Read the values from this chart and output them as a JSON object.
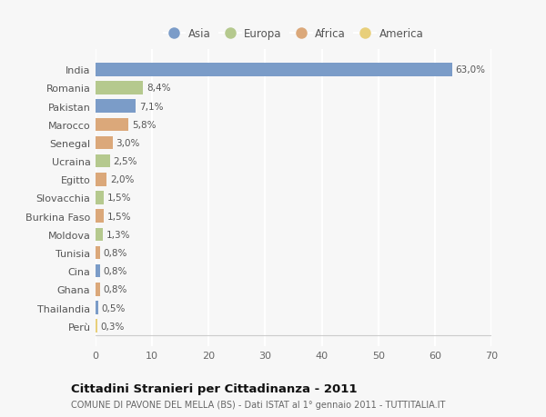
{
  "countries": [
    "India",
    "Romania",
    "Pakistan",
    "Marocco",
    "Senegal",
    "Ucraina",
    "Egitto",
    "Slovacchia",
    "Burkina Faso",
    "Moldova",
    "Tunisia",
    "Cina",
    "Ghana",
    "Thailandia",
    "Perù"
  ],
  "values": [
    63.0,
    8.4,
    7.1,
    5.8,
    3.0,
    2.5,
    2.0,
    1.5,
    1.5,
    1.3,
    0.8,
    0.8,
    0.8,
    0.5,
    0.3
  ],
  "labels": [
    "63,0%",
    "8,4%",
    "7,1%",
    "5,8%",
    "3,0%",
    "2,5%",
    "2,0%",
    "1,5%",
    "1,5%",
    "1,3%",
    "0,8%",
    "0,8%",
    "0,8%",
    "0,5%",
    "0,3%"
  ],
  "continents": [
    "Asia",
    "Europa",
    "Asia",
    "Africa",
    "Africa",
    "Europa",
    "Africa",
    "Europa",
    "Africa",
    "Europa",
    "Africa",
    "Asia",
    "Africa",
    "Asia",
    "America"
  ],
  "continent_colors": {
    "Asia": "#7b9cc8",
    "Europa": "#b5c98e",
    "Africa": "#dba87a",
    "America": "#e8cf7a"
  },
  "legend_order": [
    "Asia",
    "Europa",
    "Africa",
    "America"
  ],
  "title": "Cittadini Stranieri per Cittadinanza - 2011",
  "subtitle": "COMUNE DI PAVONE DEL MELLA (BS) - Dati ISTAT al 1° gennaio 2011 - TUTTITALIA.IT",
  "xlim": [
    0,
    70
  ],
  "xticks": [
    0,
    10,
    20,
    30,
    40,
    50,
    60,
    70
  ],
  "background_color": "#f7f7f7",
  "grid_color": "#ffffff",
  "bar_height": 0.72
}
